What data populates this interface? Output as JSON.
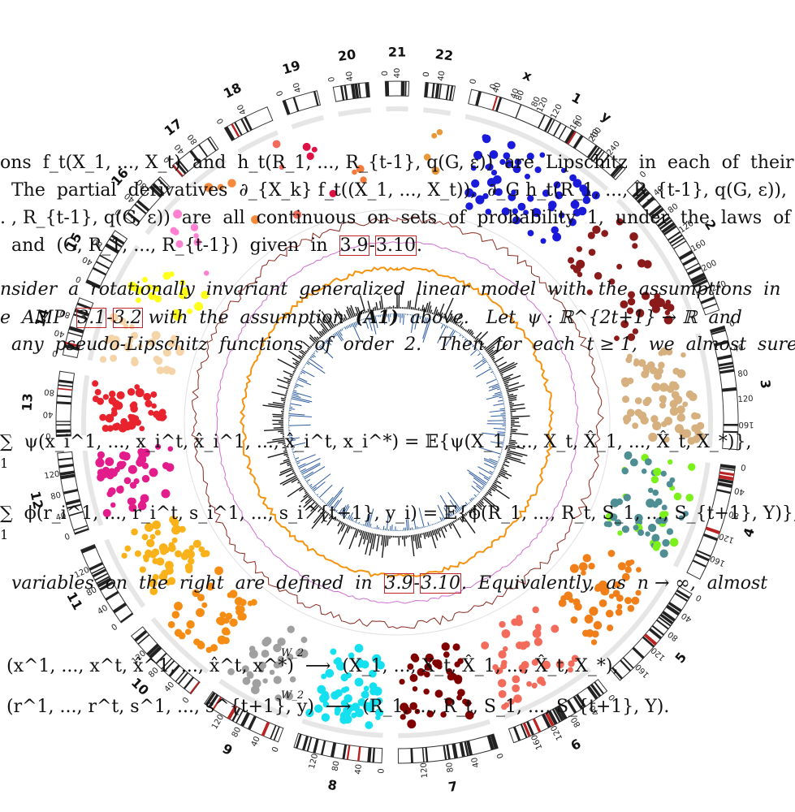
{
  "chromosomes": [
    {
      "id": "1",
      "label": "1",
      "ticks": [
        "0",
        "40",
        "80",
        "120",
        "160",
        "200",
        "240"
      ]
    },
    {
      "id": "2",
      "label": "2",
      "ticks": [
        "0",
        "40",
        "80",
        "120",
        "160",
        "200",
        "240"
      ]
    },
    {
      "id": "3",
      "label": "3",
      "ticks": [
        "0",
        "40",
        "80",
        "120",
        "160"
      ]
    },
    {
      "id": "4",
      "label": "4",
      "ticks": [
        "0",
        "40",
        "80",
        "120",
        "160"
      ]
    },
    {
      "id": "5",
      "label": "5",
      "ticks": [
        "0",
        "40",
        "80",
        "120",
        "160"
      ]
    },
    {
      "id": "6",
      "label": "6",
      "ticks": [
        "0",
        "40",
        "80",
        "120",
        "160"
      ]
    },
    {
      "id": "7",
      "label": "7",
      "ticks": [
        "0",
        "40",
        "80",
        "120"
      ]
    },
    {
      "id": "8",
      "label": "8",
      "ticks": [
        "0",
        "40",
        "80",
        "120"
      ]
    },
    {
      "id": "9",
      "label": "9",
      "ticks": [
        "0",
        "40",
        "80",
        "120"
      ]
    },
    {
      "id": "10",
      "label": "10",
      "ticks": [
        "0",
        "40",
        "80",
        "120"
      ]
    },
    {
      "id": "11",
      "label": "11",
      "ticks": [
        "0",
        "40",
        "80",
        "120"
      ]
    },
    {
      "id": "12",
      "label": "12",
      "ticks": [
        "0",
        "40",
        "80",
        "120"
      ]
    },
    {
      "id": "13",
      "label": "13",
      "ticks": [
        "0",
        "40",
        "80"
      ]
    },
    {
      "id": "14",
      "label": "14",
      "ticks": [
        "0",
        "40",
        "80"
      ]
    },
    {
      "id": "15",
      "label": "15",
      "ticks": [
        "0",
        "40",
        "80"
      ]
    },
    {
      "id": "16",
      "label": "16",
      "ticks": [
        "0",
        "40",
        "80"
      ]
    },
    {
      "id": "17",
      "label": "17",
      "ticks": [
        "0",
        "40",
        "80"
      ]
    },
    {
      "id": "18",
      "label": "18",
      "ticks": [
        "0",
        "40"
      ]
    },
    {
      "id": "19",
      "label": "19",
      "ticks": [
        "0",
        "40"
      ]
    },
    {
      "id": "20",
      "label": "20",
      "ticks": [
        "0",
        "40"
      ]
    },
    {
      "id": "21",
      "label": "21",
      "ticks": [
        "0",
        "40"
      ]
    },
    {
      "id": "22",
      "label": "22",
      "ticks": [
        "0",
        "40"
      ]
    },
    {
      "id": "x",
      "label": "x",
      "ticks": [
        "0",
        "40",
        "80",
        "120"
      ]
    },
    {
      "id": "y",
      "label": "y",
      "ticks": [
        "0",
        "40"
      ]
    }
  ],
  "colors": {
    "c1": "#1a1adb",
    "c2": "#8b1a1a",
    "c3": "#d6b07e",
    "c4": "#4f8f94",
    "c5": "#f07f1a",
    "c6": "#f26b5b",
    "c7": "#800000",
    "c8": "#14e0f0",
    "c9": "#a0a0a0",
    "c10": "#f58c14",
    "c11": "#f9b21a",
    "c12": "#e31c8c",
    "c13": "#e8232e",
    "c14": "#f5d5a8",
    "c15": "#ffff1a",
    "c16": "#ff80d0",
    "c17": "#f58a3c",
    "c18": "#f26b5b",
    "c19": "#d14",
    "c20": "#f47b3a",
    "c21": "#e8232e",
    "c22": "#e89a3a",
    "cx": "#ccc",
    "cy": "#ccc",
    "lime": "#7cf01a",
    "orange_ring": "#f5930f",
    "navy_ring": "#2c5aa0",
    "black_ring": "#1a1a1a",
    "pink_ring": "#d070d0",
    "brown_line": "#8b2a20",
    "ref_box": "#c0262b"
  },
  "text_lines": [
    {
      "text": "ons  f_t(X_1, ..., X_t)  and  h_t(R_1, ..., R_{t-1}, q(G, ε))  are  Lipschitz  in  each  of  their",
      "italic": false
    },
    {
      "text": "  The  partial  derivatives  ∂_{X_k} f_t((X_1, ..., X_t)),  ∂_G h_t(R_1, ..., R_{t-1}, q(G, ε)),  and",
      "italic": false
    },
    {
      "text": ". , R_{t-1}, q(G, ε))  are  all  continuous  on  sets  of  probability  1,  under  the  laws  of",
      "italic": false
    },
    {
      "text": "  and  (G, R_1, ..., R_{t-1})  given  in  ",
      "italic": false
    },
    {
      "text": "nsider  a  rotationally  invariant  generalized  linear  model  with  the  assumptions  in",
      "italic": true
    },
    {
      "text": "e  AMP  ",
      "italic": true
    },
    {
      "text": "  any  pseudo-Lipschitz  functions  of  order  2.   Then  for  each  t ≥ 1,  we  almost  surely",
      "italic": true
    },
    {
      "text": "∑  ψ(x_i^1, ..., x_i^t, x̂_i^1, ..., x̂_i^t, x_i^*) = 𝔼{ψ(X_1, ..., X_t, X̂_1, ..., X̂_t, X_*)},",
      "italic": false
    },
    {
      "text": "1",
      "italic": false
    },
    {
      "text": "∑  ϕ(r_i^1, ..., r_i^t, s_i^1, ..., s_i^{t+1}, y_i) = 𝔼{ϕ(R_1, ..., R_t, S_1, ..., S_{t+1}, Y)},",
      "italic": false
    },
    {
      "text": "1",
      "italic": false
    },
    {
      "text": "  variables  on  the  right  are  defined  in  ",
      "italic": true
    },
    {
      "text": "(x^1, ..., x^t, x̂^1, ..., x̂^t, x^*)  ⟶  (X_1, ..., X_t, X̂_1, ..., X̂_t, X_*),",
      "italic": false
    },
    {
      "text": "(r^1, ..., r^t, s^1, ..., s^{t+1}, y)  ⟶  (R_1, ..., R_t, S_1, ..., S_{t+1}, Y).",
      "italic": false
    }
  ],
  "refs": {
    "r39": "3.9",
    "r310": "3.10",
    "r31": "3.1",
    "r32": "3.2"
  },
  "inline": {
    "dash": "-",
    "line4_tail": ".",
    "line6_mid": " with  the  assumption  ",
    "line6_bold": "(A1)",
    "line6_tail": "  above.   Let  ψ : ℝ^{2t+1} → ℝ  and",
    "line12_tail": ".  Equivalently,  as  n → ∞,  almost",
    "w2_a": "W_2",
    "w2_b": "W_2"
  }
}
